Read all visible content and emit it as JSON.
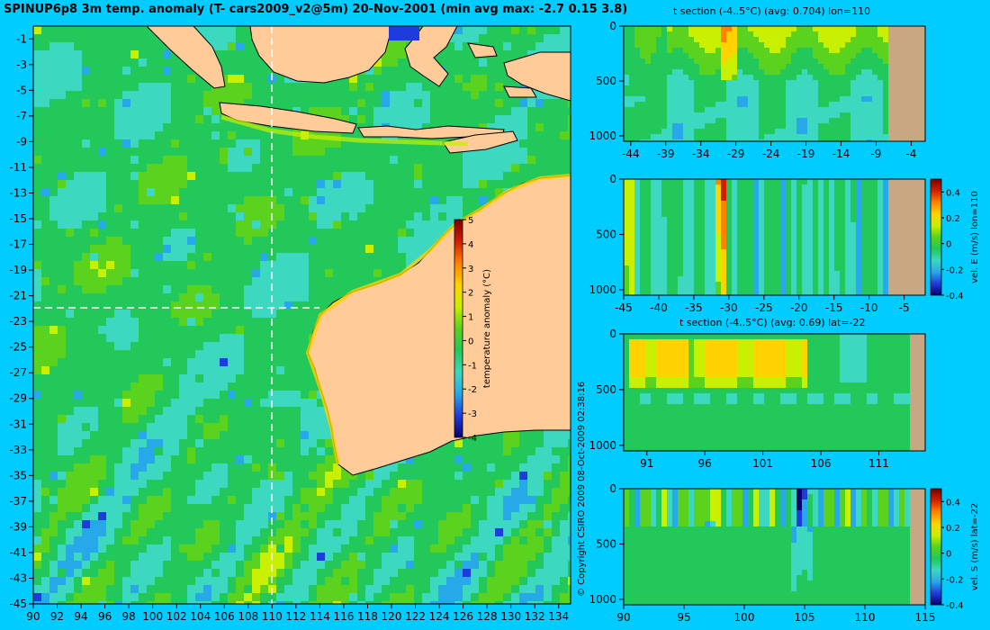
{
  "title": "SPINUP6p8 3m temp. anomaly (T- cars2009_v2@5m) 20-Nov-2001 (min avg max: -2.7 0.15 3.8)",
  "copyright": "© Copyright CSIRO 2009   08-Oct-2009 02:38:16",
  "colors": {
    "background": "#00ccff",
    "land": "#ffcc99",
    "section_land": "#c8a882",
    "colormap": [
      "#08006e",
      "#1e3cdc",
      "#27a8e8",
      "#3cd8c0",
      "#22c85a",
      "#5ad21e",
      "#c8f000",
      "#ffd200",
      "#ff8200",
      "#d21e00",
      "#780000"
    ]
  },
  "chart_data": [
    {
      "type": "heatmap",
      "name": "map",
      "title": "SPINUP6p8 3m temp. anomaly (T- cars2009_v2@5m) 20-Nov-2001 (min avg max: -2.7 0.15 3.8)",
      "xlabel": "",
      "ylabel": "",
      "xlim": [
        90,
        135
      ],
      "ylim": [
        -45,
        0
      ],
      "xticks": [
        "90",
        "92",
        "94",
        "96",
        "98",
        "100",
        "102",
        "104",
        "106",
        "108",
        "110",
        "112",
        "114",
        "116",
        "118",
        "120",
        "122",
        "124",
        "126",
        "128",
        "130",
        "132",
        "134"
      ],
      "yticks": [
        "-1",
        "-3",
        "-5",
        "-7",
        "-9",
        "-11",
        "-13",
        "-15",
        "-17",
        "-19",
        "-21",
        "-23",
        "-25",
        "-27",
        "-29",
        "-31",
        "-33",
        "-35",
        "-37",
        "-39",
        "-41",
        "-43",
        "-45"
      ],
      "section_lines": {
        "lon": 110,
        "lat": -22
      },
      "colorbar": {
        "label": "temperature anomaly (°C)",
        "min": -4,
        "max": 5,
        "ticks": [
          "5",
          "4",
          "3",
          "2",
          "1",
          "0",
          "-1",
          "-2",
          "-3",
          "-4"
        ]
      }
    },
    {
      "type": "heatmap",
      "name": "t-section-lon",
      "title": "t section (-4..5°C) (avg: 0.704) lon=110",
      "xlim": [
        -45,
        -2
      ],
      "ylim": [
        1050,
        0
      ],
      "xticks": [
        "-44",
        "-39",
        "-34",
        "-29",
        "-24",
        "-19",
        "-14",
        "-9",
        "-4"
      ],
      "yticks": [
        "0",
        "500",
        "1000"
      ]
    },
    {
      "type": "heatmap",
      "name": "vel-e-section",
      "title": "",
      "xlim": [
        -45,
        -2
      ],
      "ylim": [
        1050,
        0
      ],
      "xticks": [
        "-45",
        "-40",
        "-35",
        "-30",
        "-25",
        "-20",
        "-15",
        "-10",
        "-5"
      ],
      "yticks": [
        "0",
        "500",
        "1000"
      ],
      "colorbar": {
        "label": "vel. E (m/s) lon=110",
        "min": -0.4,
        "max": 0.5,
        "ticks": [
          "0.4",
          "0.2",
          "0",
          "-0.2",
          "-0.4"
        ]
      }
    },
    {
      "type": "heatmap",
      "name": "t-section-lat",
      "title": "t section (-4..5°C) (avg: 0.69) lat=-22",
      "xlim": [
        89,
        115
      ],
      "ylim": [
        1050,
        0
      ],
      "xticks": [
        "91",
        "96",
        "101",
        "106",
        "111"
      ],
      "yticks": [
        "0",
        "500",
        "1000"
      ]
    },
    {
      "type": "heatmap",
      "name": "vel-s-section",
      "title": "",
      "xlim": [
        90,
        115
      ],
      "ylim": [
        1050,
        0
      ],
      "xticks": [
        "90",
        "95",
        "100",
        "105",
        "110",
        "115"
      ],
      "yticks": [
        "0",
        "500",
        "1000"
      ],
      "colorbar": {
        "label": "vel. S (m/s) lat=-22",
        "min": -0.4,
        "max": 0.5,
        "ticks": [
          "0.4",
          "0.2",
          "0",
          "-0.2",
          "-0.4"
        ]
      }
    }
  ]
}
